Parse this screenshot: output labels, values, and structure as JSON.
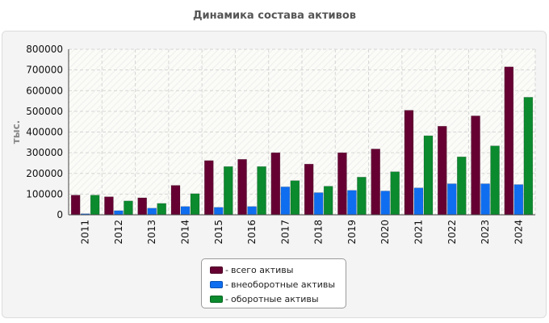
{
  "chart_data": {
    "type": "bar",
    "title": "Динамика состава активов",
    "ylabel": "тыс.",
    "xlabel": "",
    "ylim": [
      0,
      800000
    ],
    "yticks": [
      "0",
      "100000",
      "200000",
      "300000",
      "400000",
      "500000",
      "600000",
      "700000",
      "800000"
    ],
    "categories": [
      "2011",
      "2012",
      "2013",
      "2014",
      "2015",
      "2016",
      "2017",
      "2018",
      "2019",
      "2020",
      "2021",
      "2022",
      "2023",
      "2024"
    ],
    "series": [
      {
        "name": "всего активы",
        "color": "#660033",
        "values": [
          95000,
          87000,
          82000,
          142000,
          262000,
          268000,
          300000,
          245000,
          300000,
          318000,
          505000,
          428000,
          478000,
          715000
        ]
      },
      {
        "name": "внеоборотные активы",
        "color": "#0f6ef0",
        "values": [
          5000,
          20000,
          32000,
          40000,
          36000,
          40000,
          135000,
          107000,
          118000,
          115000,
          130000,
          150000,
          150000,
          146000
        ]
      },
      {
        "name": "оборотные активы",
        "color": "#0b8a2e",
        "values": [
          95000,
          67000,
          55000,
          102000,
          233000,
          233000,
          165000,
          138000,
          182000,
          208000,
          382000,
          280000,
          333000,
          568000
        ]
      }
    ],
    "grid": true,
    "legend_position": "bottom"
  }
}
